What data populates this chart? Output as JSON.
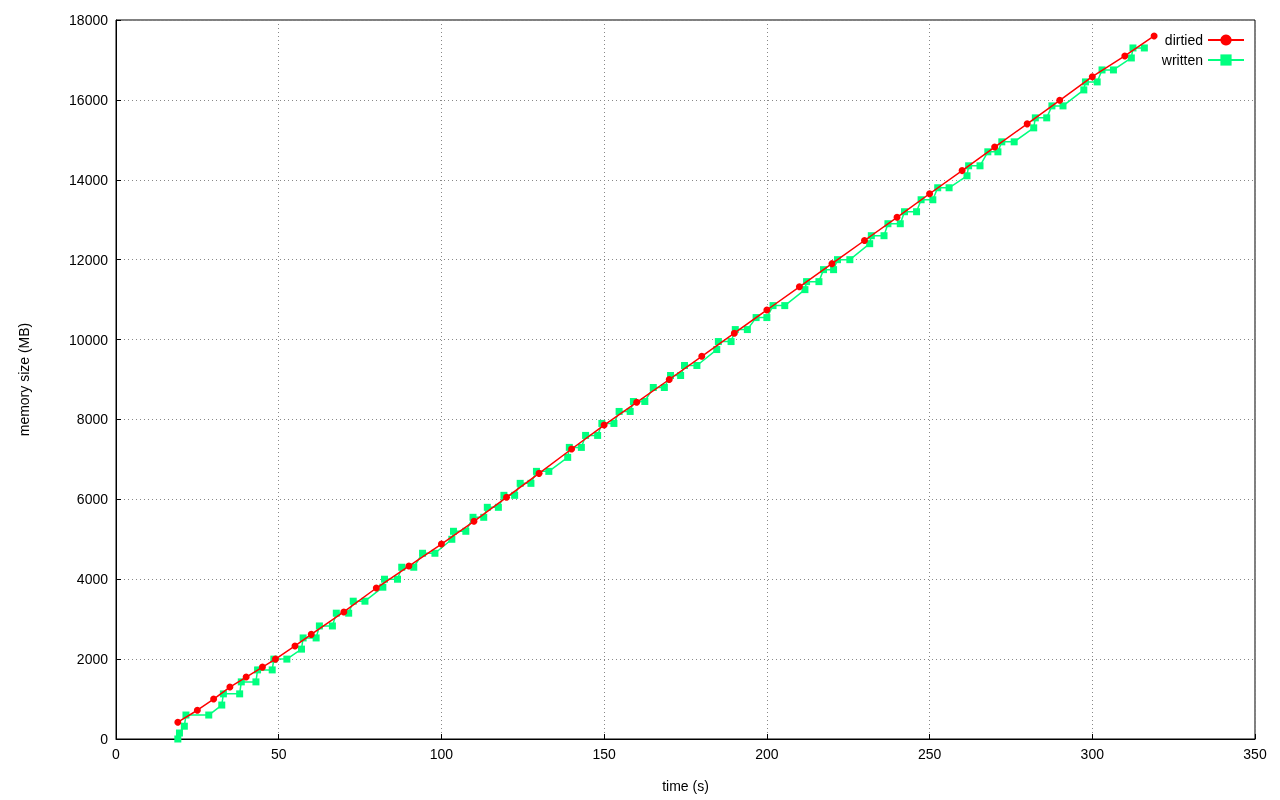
{
  "chart_data": {
    "type": "line",
    "xlabel": "time (s)",
    "ylabel": "memory size (MB)",
    "xlim": [
      0,
      350
    ],
    "xticks": [
      0,
      50,
      100,
      150,
      200,
      250,
      300,
      350
    ],
    "ylim": [
      0,
      18000
    ],
    "yticks": [
      0,
      2000,
      4000,
      6000,
      8000,
      10000,
      12000,
      14000,
      16000,
      18000
    ],
    "grid": true,
    "legend": "top right",
    "series": [
      {
        "name": "dirtied",
        "color": "#ff0000",
        "marker": "circle",
        "x": [
          19,
          25,
          30,
          35,
          40,
          45,
          49,
          55,
          60,
          70,
          80,
          90,
          100,
          110,
          120,
          130,
          140,
          150,
          160,
          170,
          180,
          190,
          200,
          210,
          220,
          230,
          240,
          250,
          260,
          270,
          280,
          290,
          300,
          310,
          319
        ],
        "values": [
          420,
          720,
          1000,
          1300,
          1550,
          1800,
          2000,
          2330,
          2620,
          3180,
          3780,
          4330,
          4880,
          5450,
          6050,
          6650,
          7260,
          7860,
          8430,
          9000,
          9580,
          10160,
          10740,
          11320,
          11900,
          12480,
          13060,
          13650,
          14230,
          14820,
          15400,
          15990,
          16580,
          17100,
          17600
        ]
      },
      {
        "name": "written",
        "color": "#00ff7f",
        "marker": "square",
        "x": [
          19,
          19.5,
          21,
          21.5,
          28.5,
          32.5,
          33,
          38,
          38.5,
          43,
          43.5,
          48,
          48.5,
          52.5,
          57,
          57.5,
          61.5,
          62.5,
          66.5,
          67.7,
          71.5,
          72.9,
          76.5,
          82,
          82.5,
          86.5,
          87.8,
          91.5,
          94.2,
          98,
          103.2,
          103.7,
          107.5,
          109.7,
          113,
          114.1,
          117.5,
          119.2,
          122.5,
          124.2,
          127.5,
          129.2,
          133,
          138.8,
          139.3,
          143,
          144.3,
          148,
          149.3,
          153,
          154.6,
          158,
          159,
          162.5,
          165.1,
          168.5,
          170.4,
          173.5,
          174.7,
          178.5,
          184.6,
          185.1,
          189,
          190.3,
          194,
          196.7,
          200,
          201.9,
          205.5,
          211.7,
          212.2,
          216,
          217.4,
          220.5,
          221.7,
          225.5,
          231.6,
          232.1,
          236,
          237.2,
          241,
          242.3,
          246,
          247.4,
          251,
          252.5,
          256,
          261.5,
          262,
          265.5,
          267.9,
          271,
          272.2,
          276,
          282,
          282.5,
          286,
          287.6,
          291,
          297.4,
          297.9,
          301.5,
          303,
          306.5,
          312,
          312.5,
          316
        ],
        "values": [
          0,
          150,
          320,
          600,
          600,
          850,
          1130,
          1130,
          1430,
          1430,
          1730,
          1730,
          2000,
          2000,
          2250,
          2530,
          2530,
          2830,
          2830,
          3150,
          3150,
          3450,
          3450,
          3800,
          4000,
          4000,
          4300,
          4300,
          4650,
          4650,
          5000,
          5200,
          5200,
          5550,
          5550,
          5800,
          5800,
          6100,
          6100,
          6400,
          6400,
          6700,
          6700,
          7050,
          7300,
          7300,
          7600,
          7600,
          7900,
          7900,
          8200,
          8200,
          8450,
          8450,
          8800,
          8800,
          9100,
          9100,
          9350,
          9350,
          9750,
          9950,
          9950,
          10250,
          10250,
          10550,
          10550,
          10850,
          10850,
          11250,
          11450,
          11450,
          11750,
          11750,
          12000,
          12000,
          12400,
          12600,
          12600,
          12900,
          12900,
          13200,
          13200,
          13500,
          13500,
          13800,
          13800,
          14100,
          14350,
          14350,
          14700,
          14700,
          14950,
          14950,
          15300,
          15550,
          15550,
          15850,
          15850,
          16250,
          16450,
          16450,
          16750,
          16750,
          17050,
          17300,
          17300
        ]
      }
    ]
  }
}
